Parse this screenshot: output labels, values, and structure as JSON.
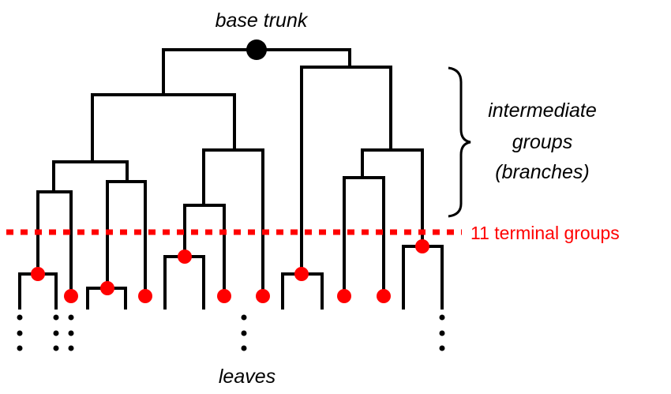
{
  "labels": {
    "base_trunk": "base trunk",
    "intermediate_1": "intermediate",
    "intermediate_2": "groups",
    "intermediate_3": "(branches)",
    "terminal": "11 terminal groups",
    "leaves": "leaves"
  },
  "colors": {
    "tree": "#000000",
    "terminal": "#ff0000",
    "root_node": "#000000"
  },
  "terminal_group_count": 11
}
